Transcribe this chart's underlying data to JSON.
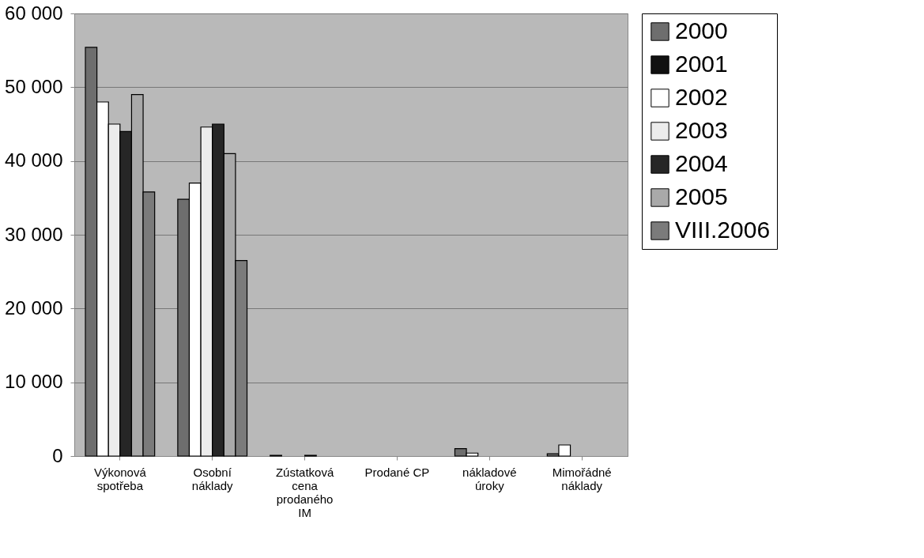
{
  "chart_data": {
    "type": "bar",
    "categories": [
      "Výkonová\nspotřeba",
      "Osobní\nnáklady",
      "Zústatková\ncena\nprodaného\nIM",
      "Prodané CP",
      "nákladové\núroky",
      "Mimořádné\nnáklady"
    ],
    "series": [
      {
        "name": "2000",
        "color": "#6e6e6e",
        "values": [
          55400,
          34800,
          100,
          null,
          1000,
          300
        ]
      },
      {
        "name": "2001",
        "color": "#111111",
        "values": [
          null,
          null,
          null,
          null,
          null,
          null
        ]
      },
      {
        "name": "2002",
        "color": "#ffffff",
        "values": [
          48000,
          37000,
          null,
          null,
          400,
          1500
        ]
      },
      {
        "name": "2003",
        "color": "#ececec",
        "values": [
          45000,
          44600,
          null,
          null,
          null,
          null
        ]
      },
      {
        "name": "2004",
        "color": "#262626",
        "values": [
          44000,
          45000,
          100,
          null,
          null,
          null
        ]
      },
      {
        "name": "2005",
        "color": "#a9a9a9",
        "values": [
          49000,
          41000,
          null,
          null,
          null,
          null
        ]
      },
      {
        "name": "VIII.2006",
        "color": "#7b7b7b",
        "values": [
          35800,
          26500,
          null,
          null,
          null,
          null
        ]
      }
    ],
    "ylim": [
      0,
      60000
    ],
    "yticks": [
      {
        "value": 0,
        "label": "0"
      },
      {
        "value": 10000,
        "label": "10 000"
      },
      {
        "value": 20000,
        "label": "20 000"
      },
      {
        "value": 30000,
        "label": "30 000"
      },
      {
        "value": 40000,
        "label": "40 000"
      },
      {
        "value": 50000,
        "label": "50 000"
      },
      {
        "value": 60000,
        "label": "60 000"
      }
    ],
    "grid": "y",
    "legend": "right"
  }
}
